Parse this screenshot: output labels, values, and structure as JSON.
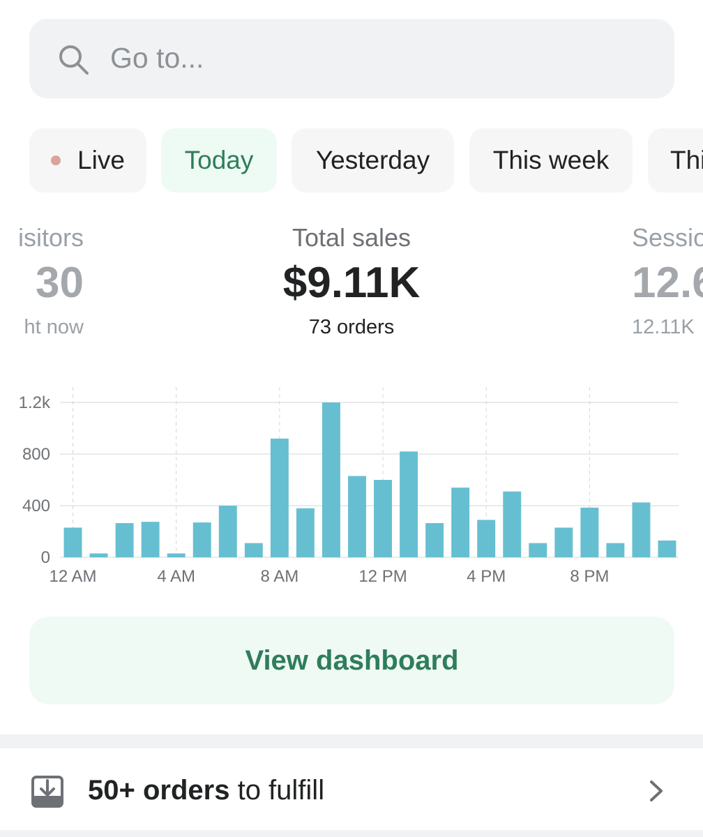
{
  "search": {
    "placeholder": "Go to..."
  },
  "tabs": [
    {
      "label": "Live",
      "active": false,
      "indicator": "dot"
    },
    {
      "label": "Today",
      "active": true
    },
    {
      "label": "Yesterday",
      "active": false
    },
    {
      "label": "This week",
      "active": false
    },
    {
      "label": "Thi",
      "active": false
    }
  ],
  "metrics": {
    "left": {
      "label": "isitors",
      "value": "30",
      "sub": "ht now"
    },
    "center": {
      "label": "Total sales",
      "value": "$9.11K",
      "sub": "73 orders"
    },
    "right": {
      "label": "Sessio",
      "value": "12.6",
      "sub": "12.11K"
    }
  },
  "chart_data": {
    "type": "bar",
    "series": [
      {
        "values": [
          230,
          30,
          265,
          275,
          30,
          270,
          400,
          110,
          920,
          380,
          1200,
          630,
          600,
          820,
          265,
          540,
          290,
          510,
          110,
          230,
          385,
          110,
          425,
          130
        ]
      }
    ],
    "x": [
      "12 AM",
      "1 AM",
      "2 AM",
      "3 AM",
      "4 AM",
      "5 AM",
      "6 AM",
      "7 AM",
      "8 AM",
      "9 AM",
      "10 AM",
      "11 AM",
      "12 PM",
      "1 PM",
      "2 PM",
      "3 PM",
      "4 PM",
      "5 PM",
      "6 PM",
      "7 PM",
      "8 PM",
      "9 PM",
      "10 PM",
      "11 PM"
    ],
    "x_tick_labels": [
      "12 AM",
      "4 AM",
      "8 AM",
      "12 PM",
      "4 PM",
      "8 PM"
    ],
    "y_tick_labels": [
      "1.2k",
      "800",
      "400",
      "0"
    ],
    "y_ticks": [
      1200,
      800,
      400,
      0
    ],
    "ylim": [
      0,
      1200
    ],
    "grid": true,
    "bar_color": "#66bfd1"
  },
  "actions": {
    "view_dashboard": "View dashboard"
  },
  "task": {
    "count_bold": "50+ orders",
    "suffix": " to fulfill"
  },
  "colors": {
    "accent_green": "#2f7d5a",
    "live_dot": "#dba39a"
  }
}
